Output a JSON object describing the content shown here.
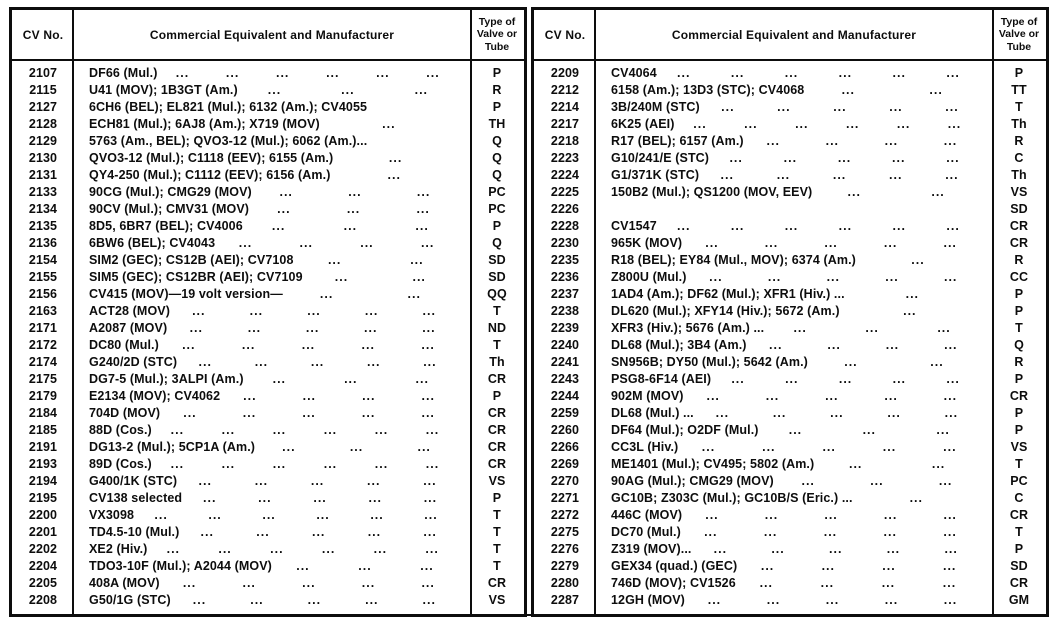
{
  "page": {
    "paper_color": "#ffffff",
    "ink_color": "#0d0d0d"
  },
  "header": {
    "cv_label": "CV No.",
    "equiv_label": "Commercial Equivalent and Manufacturer",
    "type_label_lines": [
      "Type of",
      "Valve or",
      "Tube"
    ]
  },
  "tables": [
    {
      "id": "left",
      "rows": [
        {
          "cv": "2107",
          "equiv": "DF66 (Mul.)",
          "dots": 6,
          "type": "P"
        },
        {
          "cv": "2115",
          "equiv": "U41 (MOV); 1B3GT (Am.)",
          "dots": 3,
          "type": "R"
        },
        {
          "cv": "2127",
          "equiv": "6CH6 (BEL); EL821 (Mul.); 6132 (Am.); CV4055",
          "dots": 0,
          "type": "P"
        },
        {
          "cv": "2128",
          "equiv": "ECH81 (Mul.); 6AJ8 (Am.); X719 (MOV)",
          "dots": 1,
          "type": "TH"
        },
        {
          "cv": "2129",
          "equiv": "5763 (Am., BEL); QVO3-12 (Mul.); 6062 (Am.)...",
          "dots": 0,
          "type": "Q"
        },
        {
          "cv": "2130",
          "equiv": "QVO3-12 (Mul.); C1118 (EEV); 6155 (Am.)",
          "dots": 1,
          "type": "Q"
        },
        {
          "cv": "2131",
          "equiv": "QY4-250 (Mul.); C1112 (EEV); 6156 (Am.)",
          "dots": 1,
          "type": "Q"
        },
        {
          "cv": "2133",
          "equiv": "90CG (Mul.); CMG29 (MOV)",
          "dots": 3,
          "type": "PC"
        },
        {
          "cv": "2134",
          "equiv": "90CV (Mul.); CMV31 (MOV)",
          "dots": 3,
          "type": "PC"
        },
        {
          "cv": "2135",
          "equiv": "8D5, 6BR7 (BEL); CV4006",
          "dots": 3,
          "type": "P"
        },
        {
          "cv": "2136",
          "equiv": "6BW6 (BEL); CV4043",
          "dots": 4,
          "type": "Q"
        },
        {
          "cv": "2154",
          "equiv": "SIM2 (GEC); CS12B (AEI); CV7108",
          "dots": 2,
          "type": "SD"
        },
        {
          "cv": "2155",
          "equiv": "SIM5 (GEC); CS12BR (AEI); CV7109",
          "dots": 2,
          "type": "SD"
        },
        {
          "cv": "2156",
          "equiv": "CV415 (MOV)—19 volt version—",
          "dots": 2,
          "type": "QQ"
        },
        {
          "cv": "2163",
          "equiv": "ACT28 (MOV)",
          "dots": 5,
          "type": "T"
        },
        {
          "cv": "2171",
          "equiv": "A2087 (MOV)",
          "dots": 5,
          "type": "ND"
        },
        {
          "cv": "2172",
          "equiv": "DC80 (Mul.)",
          "dots": 5,
          "type": "T"
        },
        {
          "cv": "2174",
          "equiv": "G240/2D (STC)",
          "dots": 5,
          "type": "Th"
        },
        {
          "cv": "2175",
          "equiv": "DG7-5 (Mul.); 3ALPI (Am.)",
          "dots": 3,
          "type": "CR"
        },
        {
          "cv": "2179",
          "equiv": "E2134 (MOV); CV4062",
          "dots": 4,
          "type": "P"
        },
        {
          "cv": "2184",
          "equiv": "704D (MOV)",
          "dots": 5,
          "type": "CR"
        },
        {
          "cv": "2185",
          "equiv": "88D (Cos.)",
          "dots": 6,
          "type": "CR"
        },
        {
          "cv": "2191",
          "equiv": "DG13-2 (Mul.); 5CP1A (Am.)",
          "dots": 3,
          "type": "CR"
        },
        {
          "cv": "2193",
          "equiv": "89D (Cos.)",
          "dots": 6,
          "type": "CR"
        },
        {
          "cv": "2194",
          "equiv": "G400/1K (STC)",
          "dots": 5,
          "type": "VS"
        },
        {
          "cv": "2195",
          "equiv": "CV138 selected",
          "dots": 5,
          "type": "P"
        },
        {
          "cv": "2200",
          "equiv": "VX3098",
          "dots": 6,
          "type": "T"
        },
        {
          "cv": "2201",
          "equiv": "TD4.5-10 (Mul.)",
          "dots": 5,
          "type": "T"
        },
        {
          "cv": "2202",
          "equiv": "XE2 (Hiv.)",
          "dots": 6,
          "type": "T"
        },
        {
          "cv": "2204",
          "equiv": "TDO3-10F (Mul.); A2044 (MOV)",
          "dots": 3,
          "type": "T"
        },
        {
          "cv": "2205",
          "equiv": "408A (MOV)",
          "dots": 5,
          "type": "CR"
        },
        {
          "cv": "2208",
          "equiv": "G50/1G (STC)",
          "dots": 5,
          "type": "VS"
        }
      ]
    },
    {
      "id": "right",
      "rows": [
        {
          "cv": "2209",
          "equiv": "CV4064",
          "dots": 6,
          "type": "P"
        },
        {
          "cv": "2212",
          "equiv": "6158 (Am.); 13D3 (STC); CV4068",
          "dots": 2,
          "type": "TT"
        },
        {
          "cv": "2214",
          "equiv": "3B/240M (STC)",
          "dots": 5,
          "type": "T"
        },
        {
          "cv": "2217",
          "equiv": "6K25 (AEI)",
          "dots": 6,
          "type": "Th"
        },
        {
          "cv": "2218",
          "equiv": "R17 (BEL); 6157 (Am.)",
          "dots": 4,
          "type": "R"
        },
        {
          "cv": "2223",
          "equiv": "G10/241/E (STC)",
          "dots": 5,
          "type": "C"
        },
        {
          "cv": "2224",
          "equiv": "G1/371K (STC)",
          "dots": 5,
          "type": "Th"
        },
        {
          "cv": "2225",
          "equiv": "150B2 (Mul.); QS1200 (MOV, EEV)",
          "dots": 2,
          "type": "VS"
        },
        {
          "cv": "2226",
          "equiv": "",
          "dots": 0,
          "type": "SD"
        },
        {
          "cv": "2228",
          "equiv": "CV1547",
          "dots": 6,
          "type": "CR"
        },
        {
          "cv": "2230",
          "equiv": "965K (MOV)",
          "dots": 5,
          "type": "CR"
        },
        {
          "cv": "2235",
          "equiv": "R18 (BEL); EY84 (Mul., MOV); 6374 (Am.)",
          "dots": 1,
          "type": "R"
        },
        {
          "cv": "2236",
          "equiv": "Z800U (Mul.)",
          "dots": 5,
          "type": "CC"
        },
        {
          "cv": "2237",
          "equiv": "1AD4 (Am.); DF62 (Mul.); XFR1 (Hiv.) ...",
          "dots": 1,
          "type": "P"
        },
        {
          "cv": "2238",
          "equiv": "DL620 (Mul.); XFY14 (Hiv.); 5672 (Am.)",
          "dots": 1,
          "type": "P"
        },
        {
          "cv": "2239",
          "equiv": "XFR3 (Hiv.); 5676 (Am.) ...",
          "dots": 3,
          "type": "T"
        },
        {
          "cv": "2240",
          "equiv": "DL68 (Mul.); 3B4 (Am.)",
          "dots": 4,
          "type": "Q"
        },
        {
          "cv": "2241",
          "equiv": "SN956B; DY50 (Mul.); 5642 (Am.)",
          "dots": 2,
          "type": "R"
        },
        {
          "cv": "2243",
          "equiv": "PSG8-6F14 (AEI)",
          "dots": 5,
          "type": "P"
        },
        {
          "cv": "2244",
          "equiv": "902M (MOV)",
          "dots": 5,
          "type": "CR"
        },
        {
          "cv": "2259",
          "equiv": "DL68 (Mul.) ...",
          "dots": 5,
          "type": "P"
        },
        {
          "cv": "2260",
          "equiv": "DF64 (Mul.); O2DF (Mul.)",
          "dots": 3,
          "type": "P"
        },
        {
          "cv": "2266",
          "equiv": "CC3L (Hiv.)",
          "dots": 5,
          "type": "VS"
        },
        {
          "cv": "2269",
          "equiv": "ME1401 (Mul.); CV495; 5802 (Am.)",
          "dots": 2,
          "type": "T"
        },
        {
          "cv": "2270",
          "equiv": "90AG (Mul.); CMG29 (MOV)",
          "dots": 3,
          "type": "PC"
        },
        {
          "cv": "2271",
          "equiv": "GC10B; Z303C (Mul.); GC10B/S (Eric.) ...",
          "dots": 1,
          "type": "C"
        },
        {
          "cv": "2272",
          "equiv": "446C (MOV)",
          "dots": 5,
          "type": "CR"
        },
        {
          "cv": "2275",
          "equiv": "DC70 (Mul.)",
          "dots": 5,
          "type": "T"
        },
        {
          "cv": "2276",
          "equiv": "Z319 (MOV)...",
          "dots": 5,
          "type": "P"
        },
        {
          "cv": "2279",
          "equiv": "GEX34 (quad.) (GEC)",
          "dots": 4,
          "type": "SD"
        },
        {
          "cv": "2280",
          "equiv": "746D (MOV); CV1526",
          "dots": 4,
          "type": "CR"
        },
        {
          "cv": "2287",
          "equiv": "12GH (MOV)",
          "dots": 5,
          "type": "GM"
        }
      ]
    }
  ]
}
